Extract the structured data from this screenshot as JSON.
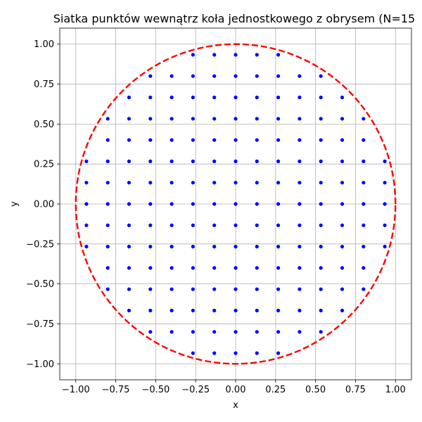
{
  "chart_data": {
    "type": "scatter",
    "title": "Siatka punktów wewnątrz koła jednostkowego z obrysem (N=15",
    "xlabel": "x",
    "ylabel": "y",
    "xlim": [
      -1.1,
      1.1
    ],
    "ylim": [
      -1.1,
      1.1
    ],
    "xticks": [
      -1.0,
      -0.75,
      -0.5,
      -0.25,
      0.0,
      0.25,
      0.5,
      0.75,
      1.0
    ],
    "yticks": [
      -1.0,
      -0.75,
      -0.5,
      -0.25,
      0.0,
      0.25,
      0.5,
      0.75,
      1.0
    ],
    "xtick_labels": [
      "−1.00",
      "−0.75",
      "−0.50",
      "−0.25",
      "0.00",
      "0.25",
      "0.50",
      "0.75",
      "1.00"
    ],
    "ytick_labels": [
      "−1.00",
      "−0.75",
      "−0.50",
      "−0.25",
      "0.00",
      "0.25",
      "0.50",
      "0.75",
      "1.00"
    ],
    "grid": true,
    "aspect": "equal",
    "series": [
      {
        "kind": "points",
        "color": "#0000ff",
        "grid_values": [
          -0.9333,
          -0.8,
          -0.6667,
          -0.5333,
          -0.4,
          -0.2667,
          -0.1333,
          0.0,
          0.1333,
          0.2667,
          0.4,
          0.5333,
          0.6667,
          0.8,
          0.9333
        ],
        "condition": "x^2 + y^2 <= 1"
      },
      {
        "kind": "circle",
        "center": [
          0,
          0
        ],
        "radius": 1.0,
        "color": "#ff0000",
        "linestyle": "dashed"
      }
    ]
  }
}
